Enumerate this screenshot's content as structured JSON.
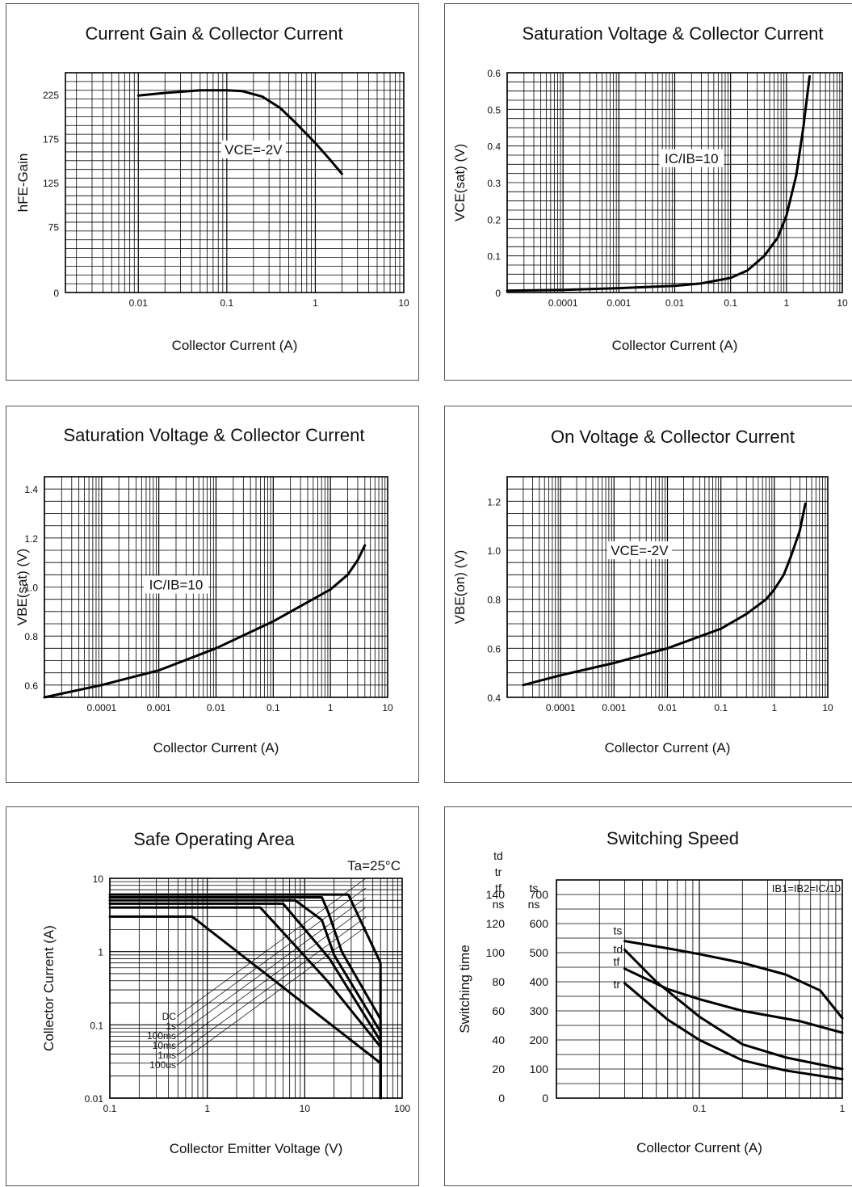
{
  "chart_data": [
    {
      "type": "line",
      "title": "Current Gain & Collector Current",
      "xlabel": "Collector Current (A)",
      "ylabel": "hFE-Gain",
      "xscale": "log",
      "xlim": [
        0.0015,
        10
      ],
      "ylim": [
        0,
        250
      ],
      "xticks": [
        {
          "v": 0.01,
          "label": "0.01"
        },
        {
          "v": 0.1,
          "label": "0.1"
        },
        {
          "v": 1,
          "label": "1"
        },
        {
          "v": 10,
          "label": "10"
        }
      ],
      "yticks": [
        {
          "v": 0,
          "label": "0"
        },
        {
          "v": 75,
          "label": "75"
        },
        {
          "v": 125,
          "label": "125"
        },
        {
          "v": 175,
          "label": "175"
        },
        {
          "v": 225,
          "label": "225"
        }
      ],
      "ygrid": 10,
      "annotations": [
        {
          "text": "VCE=-2V",
          "x": 0.2,
          "y": 160
        }
      ],
      "series": [
        {
          "x": [
            0.01,
            0.02,
            0.05,
            0.1,
            0.15,
            0.25,
            0.4,
            0.6,
            1.0,
            1.5,
            2.0
          ],
          "y": [
            224,
            227,
            230,
            230,
            229,
            223,
            210,
            193,
            170,
            150,
            135
          ]
        }
      ]
    },
    {
      "type": "line",
      "title": "Saturation Voltage & Collector Current",
      "xlabel": "Collector Current (A)",
      "ylabel": "VCE(sat) (V)",
      "xscale": "log",
      "xlim": [
        1e-05,
        10
      ],
      "ylim": [
        0,
        0.6
      ],
      "xticks": [
        {
          "v": 0.0001,
          "label": "0.0001"
        },
        {
          "v": 0.001,
          "label": "0.001"
        },
        {
          "v": 0.01,
          "label": "0.01"
        },
        {
          "v": 0.1,
          "label": "0.1"
        },
        {
          "v": 1,
          "label": "1"
        },
        {
          "v": 10,
          "label": "10"
        }
      ],
      "yticks": [
        {
          "v": 0,
          "label": "0"
        },
        {
          "v": 0.1,
          "label": "0.1"
        },
        {
          "v": 0.2,
          "label": "0.2"
        },
        {
          "v": 0.3,
          "label": "0.3"
        },
        {
          "v": 0.4,
          "label": "0.4"
        },
        {
          "v": 0.5,
          "label": "0.5"
        },
        {
          "v": 0.6,
          "label": "0.6"
        }
      ],
      "ygrid": 0.025,
      "annotations": [
        {
          "text": "IC/IB=10",
          "x": 0.02,
          "y": 0.36
        }
      ],
      "series": [
        {
          "x": [
            1e-05,
            0.0001,
            0.001,
            0.01,
            0.03,
            0.1,
            0.2,
            0.4,
            0.7,
            1.0,
            1.5,
            2.0,
            2.6
          ],
          "y": [
            0.005,
            0.007,
            0.012,
            0.018,
            0.025,
            0.04,
            0.06,
            0.1,
            0.15,
            0.21,
            0.32,
            0.45,
            0.59
          ]
        }
      ]
    },
    {
      "type": "line",
      "title": "Saturation Voltage & Collector Current",
      "xlabel": "Collector Current (A)",
      "ylabel": "VBE(sat) (V)",
      "xscale": "log",
      "xlim": [
        1e-05,
        10
      ],
      "ylim": [
        0.55,
        1.45
      ],
      "xticks": [
        {
          "v": 0.0001,
          "label": "0.0001"
        },
        {
          "v": 0.001,
          "label": "0.001"
        },
        {
          "v": 0.01,
          "label": "0.01"
        },
        {
          "v": 0.1,
          "label": "0.1"
        },
        {
          "v": 1,
          "label": "1"
        },
        {
          "v": 10,
          "label": "10"
        }
      ],
      "yticks": [
        {
          "v": 0.6,
          "label": "0.6"
        },
        {
          "v": 0.8,
          "label": "0.8"
        },
        {
          "v": 1.0,
          "label": "1.0"
        },
        {
          "v": 1.2,
          "label": "1.2"
        },
        {
          "v": 1.4,
          "label": "1.4"
        }
      ],
      "ygrid": 0.05,
      "annotations": [
        {
          "text": "IC/IB=10",
          "x": 0.002,
          "y": 1.0
        }
      ],
      "series": [
        {
          "x": [
            1e-05,
            0.0001,
            0.001,
            0.01,
            0.1,
            1.0,
            2.0,
            3.0,
            4.0
          ],
          "y": [
            0.55,
            0.6,
            0.66,
            0.75,
            0.86,
            0.99,
            1.05,
            1.11,
            1.17
          ]
        }
      ]
    },
    {
      "type": "line",
      "title": "On Voltage & Collector Current",
      "xlabel": "Collector Current (A)",
      "ylabel": "VBE(on) (V)",
      "xscale": "log",
      "xlim": [
        1e-05,
        10
      ],
      "ylim": [
        0.4,
        1.3
      ],
      "xticks": [
        {
          "v": 0.0001,
          "label": "0.0001"
        },
        {
          "v": 0.001,
          "label": "0.001"
        },
        {
          "v": 0.01,
          "label": "0.01"
        },
        {
          "v": 0.1,
          "label": "0.1"
        },
        {
          "v": 1,
          "label": "1"
        },
        {
          "v": 10,
          "label": "10"
        }
      ],
      "yticks": [
        {
          "v": 0.4,
          "label": "0.4"
        },
        {
          "v": 0.6,
          "label": "0.6"
        },
        {
          "v": 0.8,
          "label": "0.8"
        },
        {
          "v": 1.0,
          "label": "1.0"
        },
        {
          "v": 1.2,
          "label": "1.2"
        }
      ],
      "ygrid": 0.05,
      "annotations": [
        {
          "text": "VCE=-2V",
          "x": 0.003,
          "y": 0.99
        }
      ],
      "series": [
        {
          "x": [
            2e-05,
            0.0001,
            0.001,
            0.01,
            0.1,
            0.3,
            0.7,
            1.0,
            1.5,
            2.0,
            3.0,
            3.8
          ],
          "y": [
            0.45,
            0.49,
            0.54,
            0.6,
            0.68,
            0.74,
            0.8,
            0.84,
            0.9,
            0.97,
            1.08,
            1.19
          ]
        }
      ]
    },
    {
      "type": "line",
      "title": "Safe Operating Area",
      "subtitle": "Ta=25°C",
      "xlabel": "Collector Emitter Voltage (V)",
      "ylabel": "Collector Current (A)",
      "xscale": "log",
      "yscale": "log",
      "xlim": [
        0.1,
        100
      ],
      "ylim": [
        0.01,
        10
      ],
      "xticks": [
        {
          "v": 0.1,
          "label": "0.1"
        },
        {
          "v": 1,
          "label": "1"
        },
        {
          "v": 10,
          "label": "10"
        },
        {
          "v": 100,
          "label": "100"
        }
      ],
      "yticks": [
        {
          "v": 0.01,
          "label": "0.01"
        },
        {
          "v": 0.1,
          "label": "0.1"
        },
        {
          "v": 1,
          "label": "1"
        },
        {
          "v": 10,
          "label": "10"
        }
      ],
      "legend_labels": [
        "DC",
        "1s",
        "100ms",
        "10ms",
        "1ms",
        "100us"
      ],
      "series": [
        {
          "name": "DC",
          "x": [
            0.1,
            0.7,
            60,
            60
          ],
          "y": [
            3.0,
            3.0,
            0.03,
            0.01
          ]
        },
        {
          "name": "1s",
          "x": [
            0.1,
            3.5,
            17,
            60,
            60
          ],
          "y": [
            4.0,
            4.0,
            0.4,
            0.05,
            0.01
          ]
        },
        {
          "name": "100ms",
          "x": [
            0.1,
            6.0,
            18,
            60,
            60
          ],
          "y": [
            4.5,
            4.5,
            0.8,
            0.06,
            0.01
          ]
        },
        {
          "name": "10ms",
          "x": [
            0.1,
            8.0,
            15,
            20,
            60,
            60
          ],
          "y": [
            5.0,
            5.0,
            2.7,
            0.9,
            0.08,
            0.01
          ]
        },
        {
          "name": "1ms",
          "x": [
            0.1,
            15,
            17.5,
            24,
            60,
            60
          ],
          "y": [
            5.5,
            5.5,
            3.4,
            1.0,
            0.12,
            0.01
          ]
        },
        {
          "name": "100us",
          "x": [
            0.1,
            28,
            60,
            60
          ],
          "y": [
            6.0,
            6.0,
            0.7,
            0.01
          ]
        }
      ]
    },
    {
      "type": "line",
      "title": "Switching Speed",
      "xlabel": "Collector Current (A)",
      "ylabel": "Switching time",
      "xscale": "log",
      "xlim": [
        0.01,
        1
      ],
      "ylim": [
        0,
        150
      ],
      "xticks": [
        {
          "v": 0.1,
          "label": "0.1"
        },
        {
          "v": 1,
          "label": "1"
        }
      ],
      "yticks": [
        {
          "v": 0,
          "label": "0"
        },
        {
          "v": 20,
          "label": "20"
        },
        {
          "v": 40,
          "label": "40"
        },
        {
          "v": 60,
          "label": "60"
        },
        {
          "v": 80,
          "label": "80"
        },
        {
          "v": 100,
          "label": "100"
        },
        {
          "v": 120,
          "label": "120"
        },
        {
          "v": 140,
          "label": "140"
        }
      ],
      "yticks2": [
        "0",
        "100",
        "200",
        "300",
        "400",
        "500",
        "600",
        "700"
      ],
      "axis_header_left": [
        "td",
        "tr",
        "tf",
        "ns"
      ],
      "axis_header_right": [
        "ts",
        "ns"
      ],
      "condition": "IB1=IB2=IC/10",
      "ygrid": 10,
      "series": [
        {
          "name": "ts",
          "x": [
            0.03,
            0.06,
            0.1,
            0.2,
            0.4,
            0.7,
            1.0
          ],
          "y": [
            108,
            103,
            99,
            93,
            85,
            74,
            55
          ],
          "ref_axis": "ts ns (x5)"
        },
        {
          "name": "td",
          "x": [
            0.03,
            0.05,
            0.1,
            0.2,
            0.4,
            1.0
          ],
          "y": [
            102,
            80,
            56,
            37,
            28,
            20
          ]
        },
        {
          "name": "tf",
          "x": [
            0.03,
            0.06,
            0.1,
            0.2,
            0.5,
            1.0
          ],
          "y": [
            89,
            75,
            68,
            60,
            53,
            45
          ]
        },
        {
          "name": "tr",
          "x": [
            0.03,
            0.06,
            0.1,
            0.2,
            0.4,
            1.0
          ],
          "y": [
            79,
            54,
            40,
            26,
            19,
            13
          ]
        }
      ]
    }
  ]
}
